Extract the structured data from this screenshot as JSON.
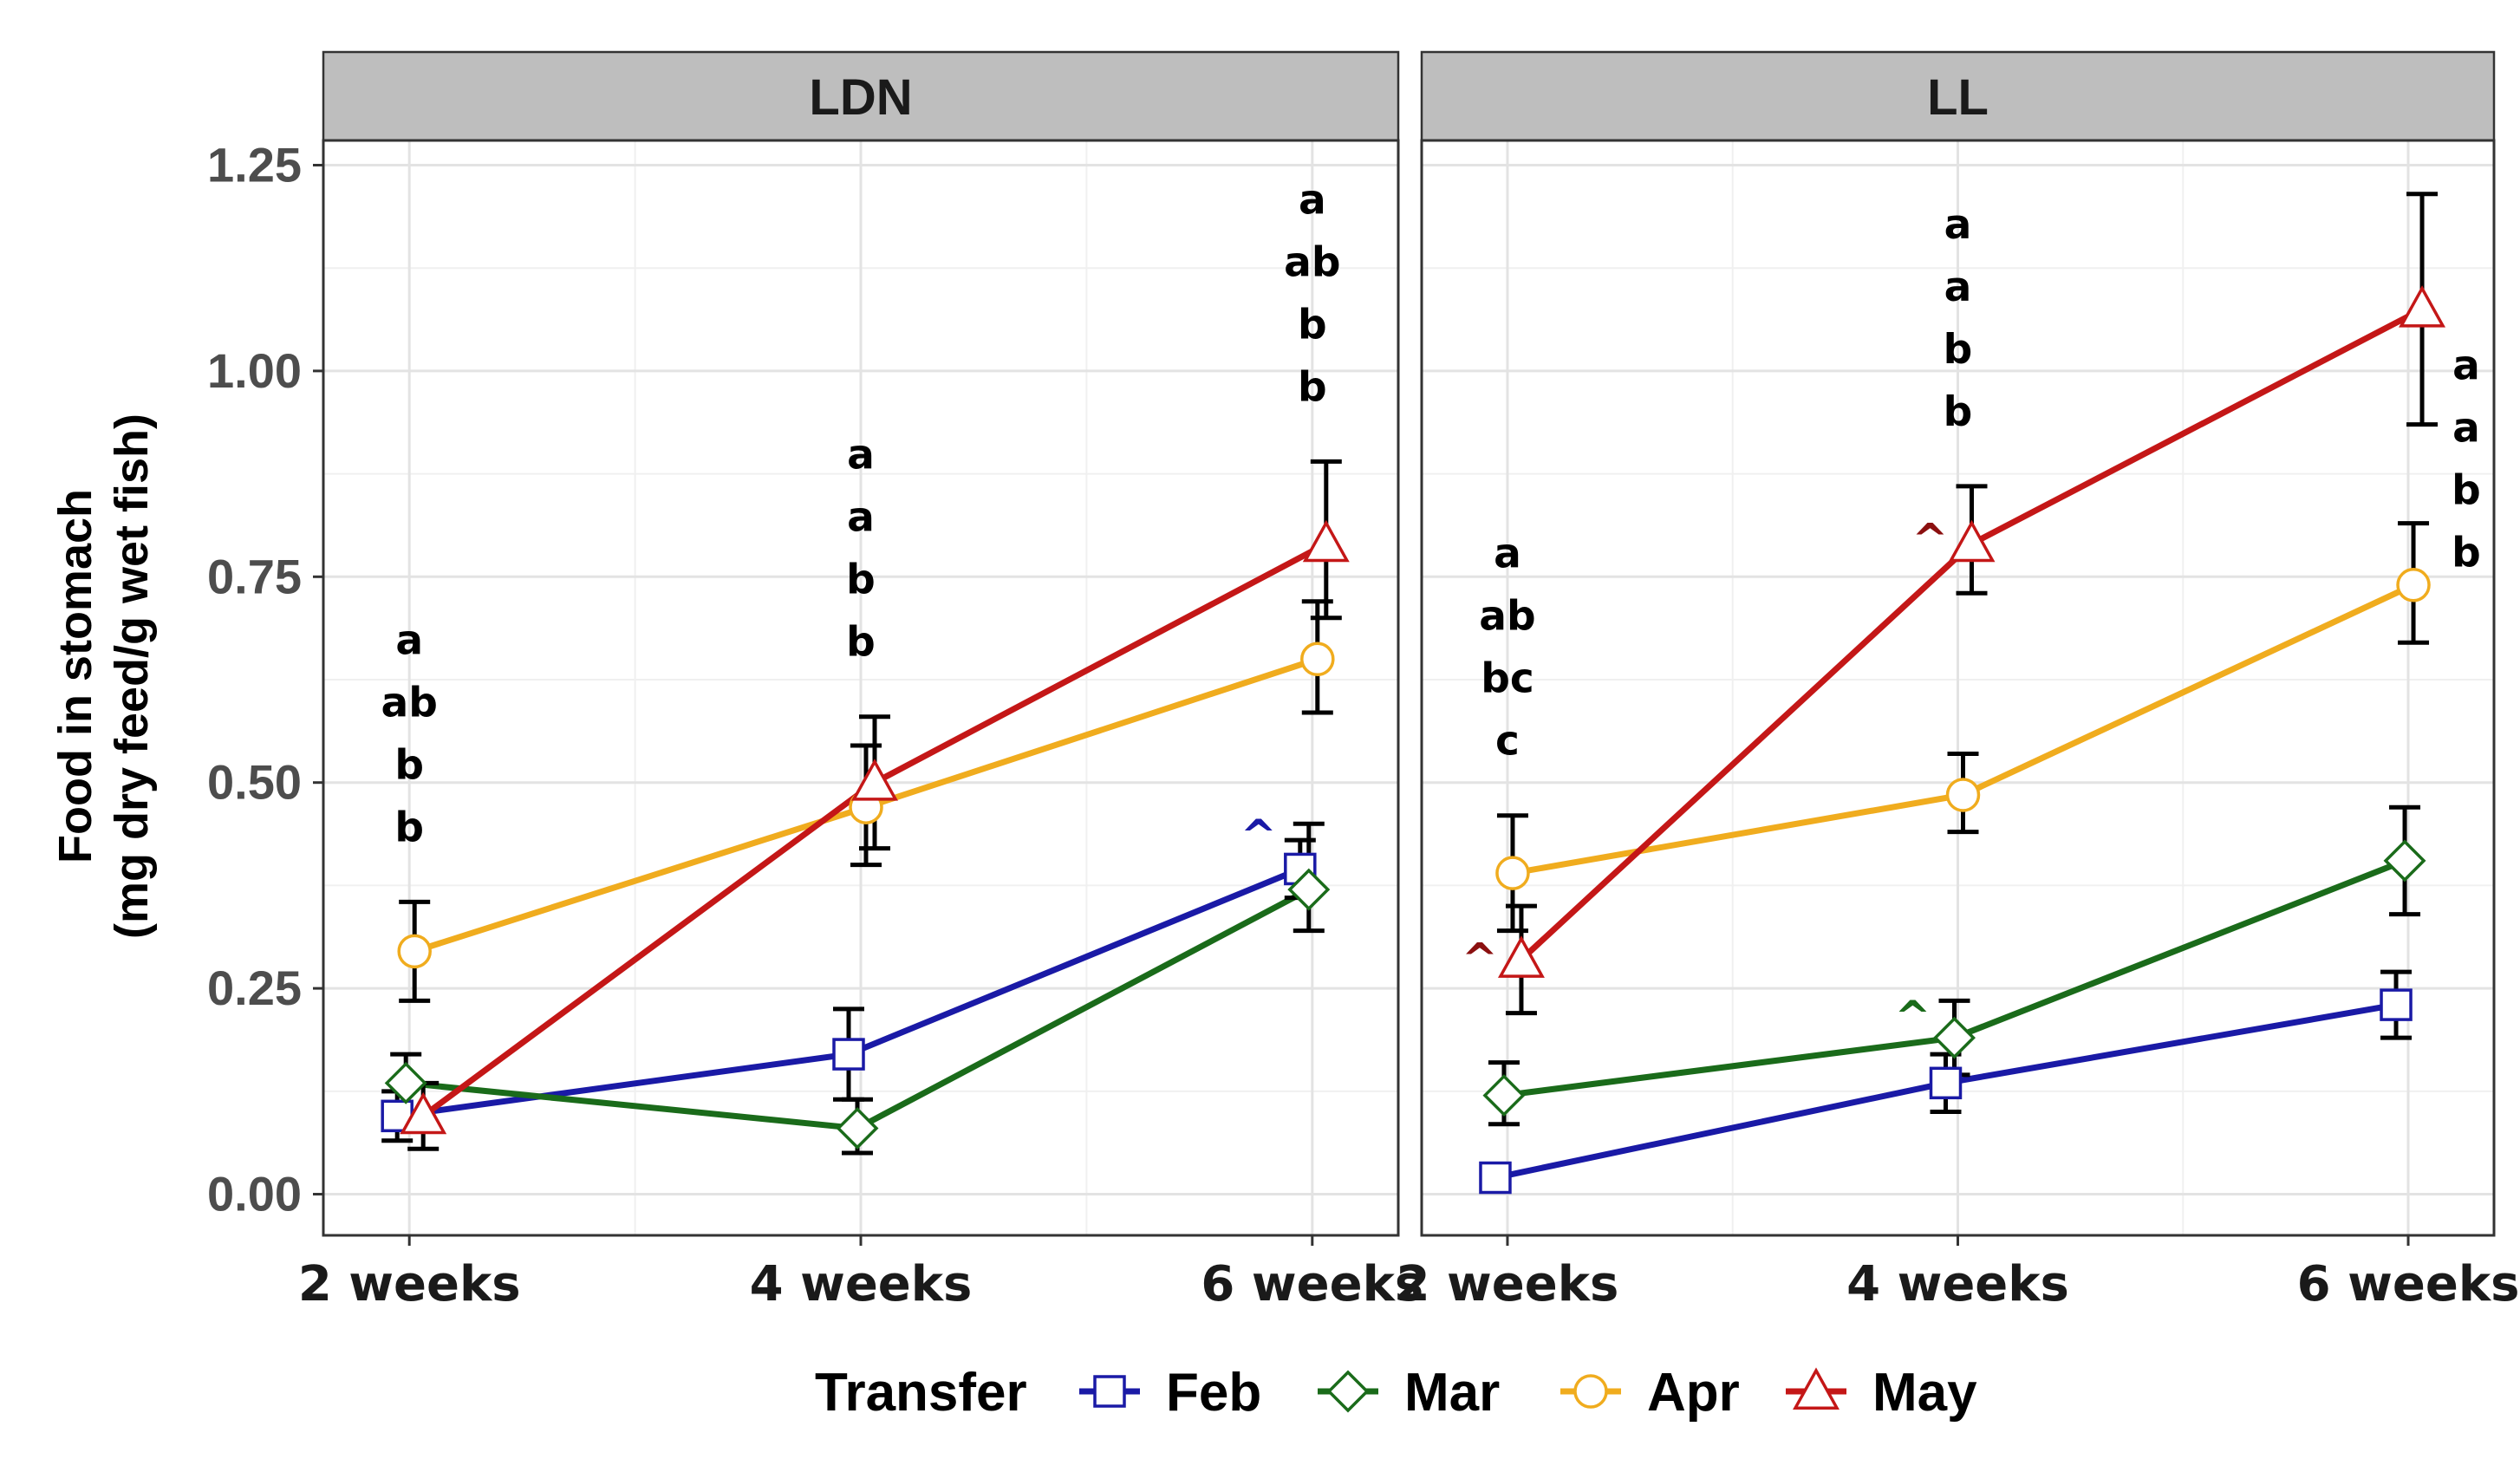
{
  "chart_data": {
    "type": "line",
    "ylabel": [
      "Food in stomach",
      "(mg dry feed/g wet fish)"
    ],
    "ylim": [
      -0.05,
      1.28
    ],
    "yticks": [
      "0.00",
      "0.25",
      "0.50",
      "0.75",
      "1.00",
      "1.25"
    ],
    "categories": [
      "2 weeks",
      "4 weeks",
      "6 weeks"
    ],
    "legend": {
      "title": "Transfer",
      "position": "bottom",
      "entries": [
        {
          "name": "Feb",
          "color": "#1a1aa6",
          "shape": "square"
        },
        {
          "name": "Mar",
          "color": "#1a6b1a",
          "shape": "diamond"
        },
        {
          "name": "Apr",
          "color": "#f0ac1e",
          "shape": "circle"
        },
        {
          "name": "May",
          "color": "#c41717",
          "shape": "triangle"
        }
      ]
    },
    "panels": [
      {
        "title": "LDN",
        "series": [
          {
            "name": "Feb",
            "values": [
              0.095,
              0.17,
              0.395
            ],
            "err_low": [
              0.065,
              0.115,
              0.36
            ],
            "err_high": [
              0.125,
              0.225,
              0.43
            ]
          },
          {
            "name": "Mar",
            "values": [
              0.135,
              0.08,
              0.37
            ],
            "err_low": [
              0.1,
              0.05,
              0.32
            ],
            "err_high": [
              0.17,
              0.115,
              0.45
            ]
          },
          {
            "name": "Apr",
            "values": [
              0.295,
              0.47,
              0.65
            ],
            "err_low": [
              0.235,
              0.4,
              0.585
            ],
            "err_high": [
              0.355,
              0.545,
              0.72
            ]
          },
          {
            "name": "May",
            "values": [
              0.095,
              0.5,
              0.79
            ],
            "err_low": [
              0.055,
              0.42,
              0.7
            ],
            "err_high": [
              0.135,
              0.58,
              0.89
            ]
          }
        ],
        "significance": [
          [
            "a",
            "ab",
            "b",
            "b"
          ],
          [
            "a",
            "a",
            "b",
            "b"
          ],
          [
            "a",
            "ab",
            "b",
            "b"
          ]
        ],
        "carets": [
          {
            "series": "Feb",
            "category": 2,
            "value": 0.43,
            "symbol": "^"
          }
        ]
      },
      {
        "title": "LL",
        "series": [
          {
            "name": "Feb",
            "values": [
              0.02,
              0.135,
              0.23
            ],
            "err_low": [
              0.02,
              0.1,
              0.19
            ],
            "err_high": [
              0.02,
              0.17,
              0.27
            ]
          },
          {
            "name": "Mar",
            "values": [
              0.12,
              0.19,
              0.405
            ],
            "err_low": [
              0.085,
              0.145,
              0.34
            ],
            "err_high": [
              0.16,
              0.235,
              0.47
            ]
          },
          {
            "name": "Apr",
            "values": [
              0.39,
              0.485,
              0.74
            ],
            "err_low": [
              0.32,
              0.44,
              0.67
            ],
            "err_high": [
              0.46,
              0.535,
              0.815
            ]
          },
          {
            "name": "May",
            "values": [
              0.285,
              0.79,
              1.075
            ],
            "err_low": [
              0.22,
              0.73,
              0.935
            ],
            "err_high": [
              0.35,
              0.86,
              1.215
            ]
          }
        ],
        "significance": [
          [
            "a",
            "ab",
            "bc",
            "c"
          ],
          [
            "a",
            "a",
            "b",
            "b"
          ],
          [
            "a",
            "a",
            "b",
            "b"
          ]
        ],
        "carets": [
          {
            "series": "May",
            "category": 0,
            "value": 0.28,
            "symbol": "^"
          },
          {
            "series": "May",
            "category": 1,
            "value": 0.79,
            "symbol": "^"
          },
          {
            "series": "Mar",
            "category": 1,
            "value": 0.21,
            "symbol": "^"
          }
        ]
      }
    ]
  }
}
